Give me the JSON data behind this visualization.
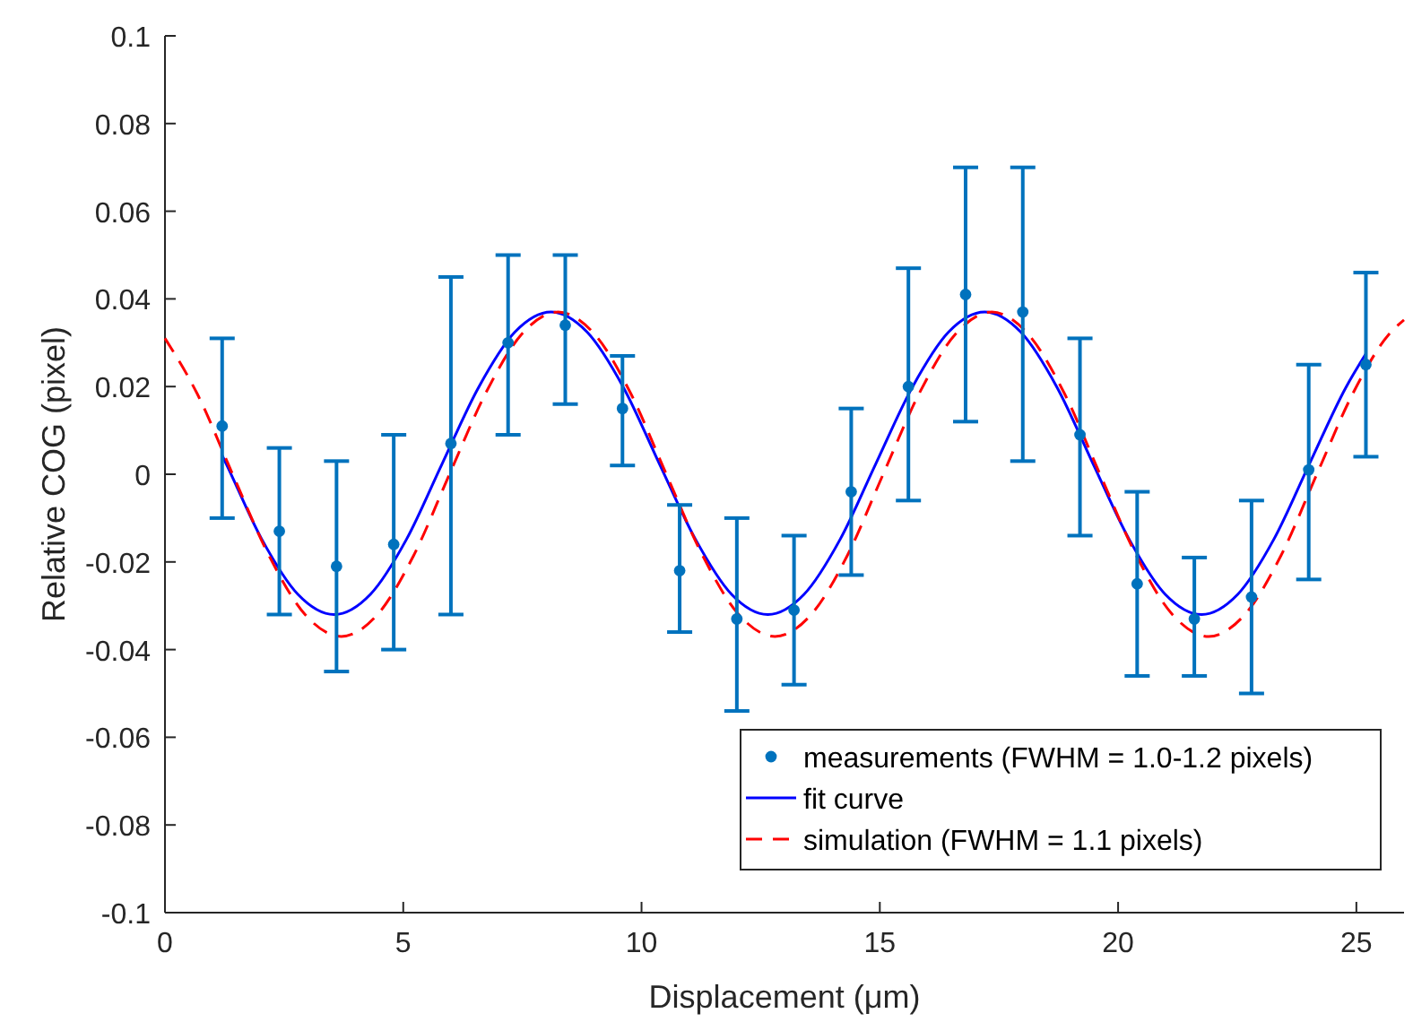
{
  "chart_data": {
    "type": "scatter",
    "xlabel": "Displacement (μm)",
    "ylabel": "Relative COG (pixel)",
    "xlim": [
      0,
      26
    ],
    "xticks": [
      0,
      5,
      10,
      15,
      20,
      25
    ],
    "ylim": [
      -0.1,
      0.1
    ],
    "yticks": [
      -0.1,
      -0.08,
      -0.06,
      -0.04,
      -0.02,
      0,
      0.02,
      0.04,
      0.06,
      0.08,
      0.1
    ],
    "grid": false,
    "legend": "bottom right",
    "series": [
      {
        "name": "measurements (FWHM = 1.0-1.2 pixels)",
        "color": "#0072bd",
        "marker": "circle",
        "x": [
          1.2,
          2.4,
          3.6,
          4.8,
          6.0,
          7.2,
          8.4,
          9.6,
          10.8,
          12.0,
          13.2,
          14.4,
          15.6,
          16.8,
          18.0,
          19.2,
          20.4,
          21.6,
          22.8,
          24.0,
          25.2
        ],
        "values": [
          0.011,
          -0.013,
          -0.021,
          -0.016,
          0.007,
          0.03,
          0.034,
          0.015,
          -0.022,
          -0.033,
          -0.031,
          -0.004,
          0.02,
          0.041,
          0.037,
          0.009,
          -0.025,
          -0.033,
          -0.028,
          0.001,
          0.025
        ],
        "errors": [
          [
            -0.01,
            0.031
          ],
          [
            -0.032,
            0.006
          ],
          [
            -0.045,
            0.003
          ],
          [
            -0.04,
            0.009
          ],
          [
            -0.032,
            0.045
          ],
          [
            0.009,
            0.05
          ],
          [
            0.016,
            0.05
          ],
          [
            0.002,
            0.027
          ],
          [
            -0.036,
            -0.007
          ],
          [
            -0.054,
            -0.01
          ],
          [
            -0.048,
            -0.014
          ],
          [
            -0.023,
            0.015
          ],
          [
            -0.006,
            0.047
          ],
          [
            0.012,
            0.07
          ],
          [
            0.003,
            0.07
          ],
          [
            -0.014,
            0.031
          ],
          [
            -0.046,
            -0.004
          ],
          [
            -0.046,
            -0.019
          ],
          [
            -0.05,
            -0.006
          ],
          [
            -0.024,
            0.025
          ],
          [
            0.004,
            0.046
          ]
        ]
      },
      {
        "name": "fit curve",
        "type": "line",
        "color": "#0000ff",
        "marker": "none",
        "line_style": "solid",
        "x": [
          1.2,
          1.28,
          2.03,
          2.79,
          3.55,
          4.31,
          5.07,
          5.82,
          6.58,
          7.34,
          8.1,
          8.86,
          9.62,
          10.37,
          11.13,
          11.89,
          12.65,
          13.41,
          14.17,
          14.92,
          15.68,
          16.44,
          17.2,
          17.96,
          18.72,
          19.47,
          20.23,
          20.99,
          21.75,
          22.51,
          23.27,
          24.02,
          24.78,
          25.2
        ],
        "values": [
          0.0043,
          0.0025,
          -0.0148,
          -0.0274,
          -0.032,
          -0.0274,
          -0.0148,
          0.0025,
          0.0198,
          0.0324,
          0.037,
          0.0324,
          0.0198,
          0.0025,
          -0.0148,
          -0.0274,
          -0.032,
          -0.0274,
          -0.0148,
          0.0025,
          0.0198,
          0.0324,
          0.037,
          0.0324,
          0.0198,
          0.0025,
          -0.0148,
          -0.0274,
          -0.032,
          -0.0274,
          -0.0148,
          0.0025,
          0.0198,
          0.0275
        ]
      },
      {
        "name": "simulation (FWHM = 1.1 pixels)",
        "type": "line",
        "color": "#ff0000",
        "marker": "none",
        "line_style": "dashed",
        "x": [
          0,
          0.67,
          1.42,
          2.18,
          2.94,
          3.7,
          4.46,
          5.22,
          5.97,
          6.73,
          7.49,
          8.25,
          9.01,
          9.77,
          10.52,
          11.28,
          12.04,
          12.8,
          13.56,
          14.32,
          15.07,
          15.83,
          16.59,
          17.35,
          18.11,
          18.87,
          19.62,
          20.38,
          21.14,
          21.9,
          22.66,
          23.42,
          24.17,
          24.93,
          25.69,
          26
        ],
        "values": [
          0.031,
          0.0185,
          0,
          -0.0185,
          -0.032,
          -0.037,
          -0.032,
          -0.0185,
          0,
          0.0185,
          0.032,
          0.037,
          0.032,
          0.0185,
          0,
          -0.0185,
          -0.032,
          -0.037,
          -0.032,
          -0.0185,
          0,
          0.0185,
          0.032,
          0.037,
          0.032,
          0.0185,
          0,
          -0.0185,
          -0.032,
          -0.037,
          -0.032,
          -0.0185,
          0,
          0.0185,
          0.032,
          0.0352
        ]
      }
    ]
  }
}
